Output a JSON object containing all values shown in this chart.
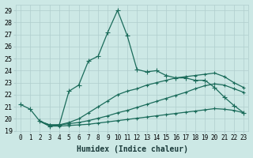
{
  "xlabel": "Humidex (Indice chaleur)",
  "bg_color": "#cce8e5",
  "grid_color": "#b0cece",
  "line_color": "#1a6b5a",
  "xlim": [
    -0.5,
    23.5
  ],
  "ylim": [
    19,
    29.5
  ],
  "x_ticks": [
    0,
    1,
    2,
    3,
    4,
    5,
    6,
    7,
    8,
    9,
    10,
    11,
    12,
    13,
    14,
    15,
    16,
    17,
    18,
    19,
    20,
    21,
    22,
    23
  ],
  "yticks": [
    19,
    20,
    21,
    22,
    23,
    24,
    25,
    26,
    27,
    28,
    29
  ],
  "series": [
    {
      "x": [
        0,
        1,
        2,
        3,
        4,
        5,
        6,
        7,
        8,
        9,
        10,
        11,
        12,
        13,
        14,
        15,
        16,
        17,
        18,
        19,
        20,
        21,
        22,
        23
      ],
      "y": [
        21.2,
        20.8,
        19.8,
        19.4,
        19.5,
        22.3,
        22.8,
        24.8,
        25.2,
        27.2,
        29.0,
        26.9,
        24.1,
        23.9,
        24.0,
        23.6,
        23.4,
        23.4,
        23.2,
        23.2,
        22.6,
        21.8,
        21.1,
        20.5
      ],
      "marker": "+",
      "markersize": 4,
      "linewidth": 0.9
    },
    {
      "x": [
        2,
        3,
        4,
        5,
        6,
        7,
        8,
        9,
        10,
        11,
        12,
        13,
        14,
        15,
        16,
        17,
        18,
        19,
        20,
        21,
        22,
        23
      ],
      "y": [
        19.8,
        19.5,
        19.5,
        19.7,
        20.0,
        20.5,
        21.0,
        21.5,
        22.0,
        22.3,
        22.5,
        22.8,
        23.0,
        23.2,
        23.4,
        23.5,
        23.6,
        23.7,
        23.8,
        23.5,
        23.0,
        22.6
      ],
      "marker": "+",
      "markersize": 3,
      "linewidth": 0.9
    },
    {
      "x": [
        2,
        3,
        4,
        5,
        6,
        7,
        8,
        9,
        10,
        11,
        12,
        13,
        14,
        15,
        16,
        17,
        18,
        19,
        20,
        21,
        22,
        23
      ],
      "y": [
        19.8,
        19.5,
        19.5,
        19.6,
        19.7,
        19.85,
        20.05,
        20.25,
        20.5,
        20.7,
        20.95,
        21.2,
        21.45,
        21.7,
        21.95,
        22.2,
        22.5,
        22.75,
        22.9,
        22.8,
        22.5,
        22.2
      ],
      "marker": "+",
      "markersize": 3,
      "linewidth": 0.9
    },
    {
      "x": [
        2,
        3,
        4,
        5,
        6,
        7,
        8,
        9,
        10,
        11,
        12,
        13,
        14,
        15,
        16,
        17,
        18,
        19,
        20,
        21,
        22,
        23
      ],
      "y": [
        19.8,
        19.4,
        19.4,
        19.45,
        19.5,
        19.55,
        19.65,
        19.75,
        19.85,
        19.95,
        20.05,
        20.15,
        20.25,
        20.35,
        20.45,
        20.55,
        20.65,
        20.75,
        20.85,
        20.8,
        20.7,
        20.5
      ],
      "marker": "+",
      "markersize": 3,
      "linewidth": 0.9
    }
  ]
}
